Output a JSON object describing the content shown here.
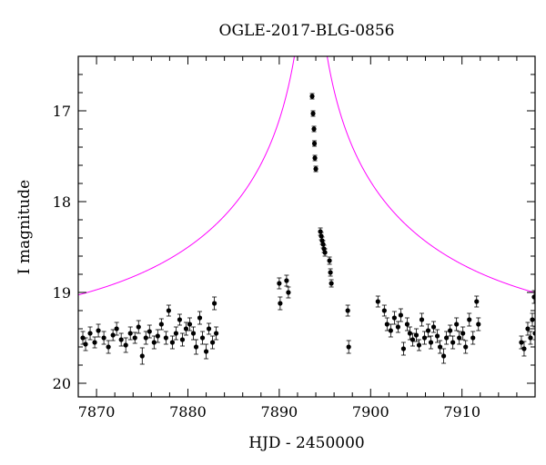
{
  "chart_data": {
    "type": "scatter",
    "title": "OGLE-2017-BLG-0856",
    "xlabel": "HJD - 2450000",
    "ylabel": "I magnitude",
    "xlim": [
      7868,
      7918
    ],
    "ylim": [
      20.15,
      16.4
    ],
    "y_inverted": true,
    "x_ticks": [
      7870,
      7880,
      7890,
      7900,
      7910
    ],
    "y_ticks": [
      17,
      18,
      19,
      20
    ],
    "grid": false,
    "legend": "none",
    "series": [
      {
        "style": "points-with-errorbars",
        "color": "#000000",
        "points": [
          [
            7868.5,
            19.5,
            0.07
          ],
          [
            7868.8,
            19.57,
            0.07
          ],
          [
            7869.3,
            19.45,
            0.07
          ],
          [
            7869.8,
            19.55,
            0.06
          ],
          [
            7870.2,
            19.42,
            0.07
          ],
          [
            7870.8,
            19.5,
            0.07
          ],
          [
            7871.3,
            19.6,
            0.07
          ],
          [
            7871.8,
            19.47,
            0.06
          ],
          [
            7872.2,
            19.4,
            0.07
          ],
          [
            7872.7,
            19.52,
            0.07
          ],
          [
            7873.2,
            19.58,
            0.08
          ],
          [
            7873.7,
            19.45,
            0.07
          ],
          [
            7874.2,
            19.5,
            0.06
          ],
          [
            7874.6,
            19.38,
            0.07
          ],
          [
            7875,
            19.7,
            0.09
          ],
          [
            7875.4,
            19.5,
            0.07
          ],
          [
            7875.8,
            19.43,
            0.07
          ],
          [
            7876.3,
            19.55,
            0.07
          ],
          [
            7876.7,
            19.48,
            0.07
          ],
          [
            7877.1,
            19.35,
            0.06
          ],
          [
            7877.6,
            19.5,
            0.07
          ],
          [
            7877.9,
            19.2,
            0.06
          ],
          [
            7878.3,
            19.55,
            0.07
          ],
          [
            7878.7,
            19.45,
            0.07
          ],
          [
            7879.1,
            19.3,
            0.06
          ],
          [
            7879.4,
            19.52,
            0.07
          ],
          [
            7879.8,
            19.4,
            0.07
          ],
          [
            7880.2,
            19.35,
            0.07
          ],
          [
            7880.6,
            19.45,
            0.07
          ],
          [
            7880.9,
            19.6,
            0.08
          ],
          [
            7881.3,
            19.28,
            0.07
          ],
          [
            7881.6,
            19.5,
            0.07
          ],
          [
            7882,
            19.65,
            0.08
          ],
          [
            7882.3,
            19.4,
            0.06
          ],
          [
            7882.7,
            19.55,
            0.07
          ],
          [
            7882.9,
            19.12,
            0.07
          ],
          [
            7883.1,
            19.45,
            0.07
          ],
          [
            7890,
            18.9,
            0.06
          ],
          [
            7890.1,
            19.12,
            0.07
          ],
          [
            7890.8,
            18.87,
            0.06
          ],
          [
            7891,
            19.0,
            0.06
          ],
          [
            7893.6,
            16.84,
            0.03
          ],
          [
            7893.7,
            17.03,
            0.03
          ],
          [
            7893.8,
            17.2,
            0.03
          ],
          [
            7893.85,
            17.36,
            0.03
          ],
          [
            7893.9,
            17.52,
            0.03
          ],
          [
            7894,
            17.64,
            0.03
          ],
          [
            7894.5,
            18.33,
            0.04
          ],
          [
            7894.6,
            18.38,
            0.04
          ],
          [
            7894.7,
            18.43,
            0.04
          ],
          [
            7894.8,
            18.47,
            0.04
          ],
          [
            7894.9,
            18.52,
            0.04
          ],
          [
            7895,
            18.56,
            0.04
          ],
          [
            7895.5,
            18.65,
            0.04
          ],
          [
            7895.6,
            18.78,
            0.04
          ],
          [
            7895.7,
            18.9,
            0.04
          ],
          [
            7897.5,
            19.2,
            0.06
          ],
          [
            7897.6,
            19.6,
            0.07
          ],
          [
            7900.8,
            19.1,
            0.06
          ],
          [
            7901.5,
            19.2,
            0.06
          ],
          [
            7901.8,
            19.35,
            0.07
          ],
          [
            7902.2,
            19.42,
            0.07
          ],
          [
            7902.6,
            19.28,
            0.07
          ],
          [
            7903,
            19.38,
            0.06
          ],
          [
            7903.3,
            19.25,
            0.07
          ],
          [
            7903.6,
            19.62,
            0.07
          ],
          [
            7904,
            19.35,
            0.07
          ],
          [
            7904.3,
            19.45,
            0.07
          ],
          [
            7904.6,
            19.52,
            0.07
          ],
          [
            7905,
            19.47,
            0.07
          ],
          [
            7905.3,
            19.58,
            0.06
          ],
          [
            7905.6,
            19.3,
            0.07
          ],
          [
            7905.9,
            19.5,
            0.07
          ],
          [
            7906.3,
            19.42,
            0.07
          ],
          [
            7906.6,
            19.55,
            0.07
          ],
          [
            7906.9,
            19.38,
            0.06
          ],
          [
            7907.3,
            19.48,
            0.07
          ],
          [
            7907.6,
            19.6,
            0.07
          ],
          [
            7908,
            19.7,
            0.08
          ],
          [
            7908.3,
            19.5,
            0.07
          ],
          [
            7908.7,
            19.42,
            0.06
          ],
          [
            7909,
            19.55,
            0.07
          ],
          [
            7909.4,
            19.35,
            0.07
          ],
          [
            7909.7,
            19.5,
            0.07
          ],
          [
            7910.1,
            19.45,
            0.07
          ],
          [
            7910.4,
            19.6,
            0.07
          ],
          [
            7910.8,
            19.3,
            0.07
          ],
          [
            7911.2,
            19.5,
            0.07
          ],
          [
            7911.6,
            19.1,
            0.06
          ],
          [
            7911.8,
            19.35,
            0.07
          ],
          [
            7916.5,
            19.55,
            0.07
          ],
          [
            7916.8,
            19.62,
            0.08
          ],
          [
            7917.2,
            19.4,
            0.07
          ],
          [
            7917.5,
            19.5,
            0.07
          ],
          [
            7917.7,
            19.3,
            0.07
          ],
          [
            7917.9,
            19.05,
            0.07
          ],
          [
            7918,
            19.45,
            0.07
          ]
        ]
      },
      {
        "style": "line",
        "color": "#ff00ff",
        "model": {
          "t0": 7893.45,
          "u0": 0.008,
          "tE": 30,
          "baseline": 19.45
        }
      }
    ]
  }
}
